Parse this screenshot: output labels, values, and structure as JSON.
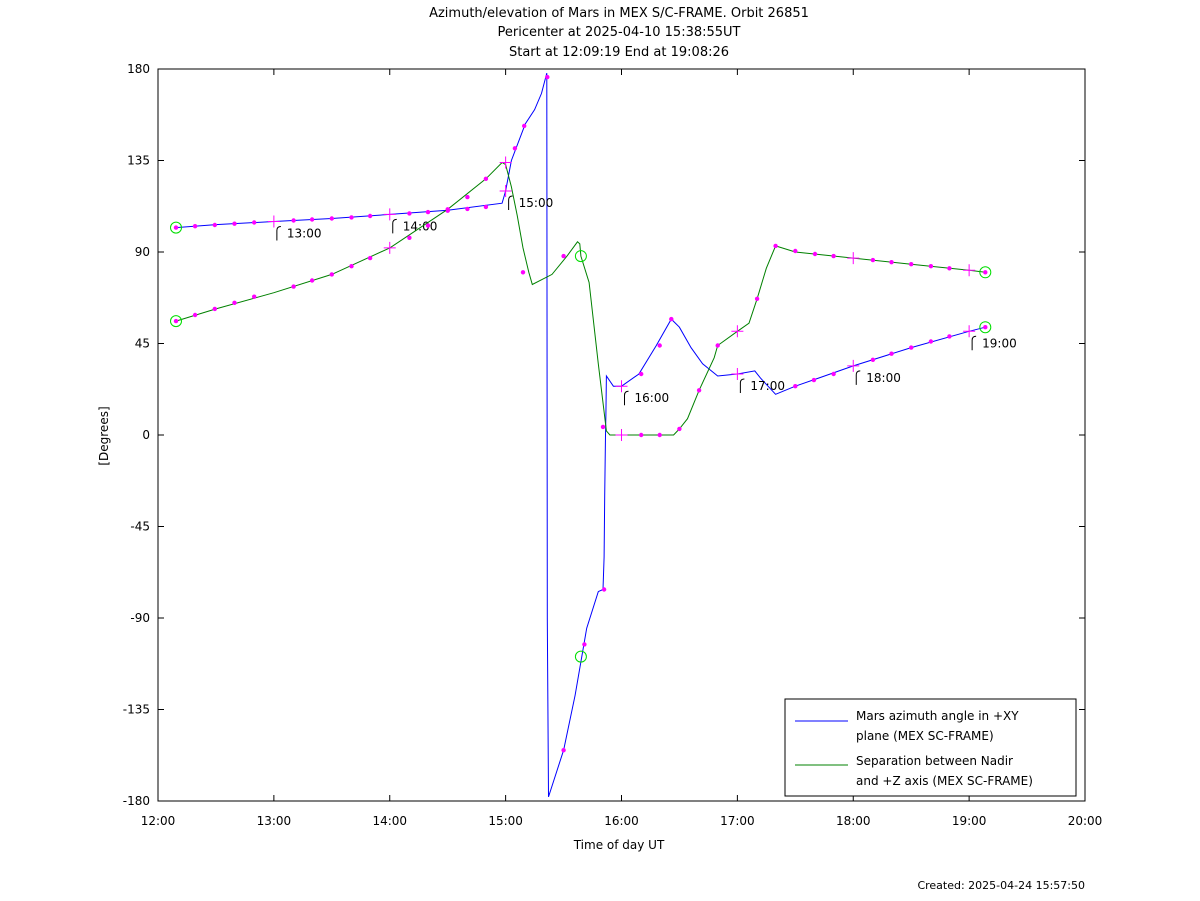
{
  "chart_data": {
    "type": "line",
    "title": [
      "Azimuth/elevation of Mars in MEX S/C-FRAME.  Orbit 26851",
      "Pericenter at 2025-04-10 15:38:55UT",
      "Start at 12:09:19 End at 19:08:26"
    ],
    "xlabel": "Time of day UT",
    "ylabel": "[Degrees]",
    "xlim": [
      12.0,
      20.0
    ],
    "ylim": [
      -180,
      180
    ],
    "x_ticks": [
      12,
      13,
      14,
      15,
      16,
      17,
      18,
      19,
      20
    ],
    "x_tick_labels": [
      "12:00",
      "13:00",
      "14:00",
      "15:00",
      "16:00",
      "17:00",
      "18:00",
      "19:00",
      "20:00"
    ],
    "y_ticks": [
      180,
      135,
      90,
      45,
      0,
      -45,
      -90,
      -135,
      -180
    ],
    "y_tick_labels": [
      "180",
      "135",
      "90",
      "45",
      "0",
      "-45",
      "-90",
      "-135",
      "-180"
    ],
    "grid": false,
    "legend_position": "bottom-right",
    "series": [
      {
        "name": "Mars azimuth angle in +XY plane (MEX SC-FRAME)",
        "legend_lines": [
          "Mars azimuth angle in +XY",
          "plane (MEX SC-FRAME)"
        ],
        "color": "#0000ff",
        "points": [
          [
            12.155,
            102
          ],
          [
            12.5,
            103.5
          ],
          [
            13.0,
            105
          ],
          [
            13.5,
            106.5
          ],
          [
            14.0,
            108.5
          ],
          [
            14.5,
            110.5
          ],
          [
            14.97,
            114
          ],
          [
            15.0,
            120
          ],
          [
            15.05,
            135
          ],
          [
            15.17,
            153
          ],
          [
            15.25,
            160
          ],
          [
            15.31,
            168
          ],
          [
            15.355,
            178
          ],
          [
            15.36,
            -90
          ],
          [
            15.37,
            -178
          ],
          [
            15.5,
            -155
          ],
          [
            15.6,
            -128
          ],
          [
            15.7,
            -95
          ],
          [
            15.8,
            -77
          ],
          [
            15.84,
            -76
          ],
          [
            15.85,
            -60
          ],
          [
            15.855,
            -30
          ],
          [
            15.862,
            0
          ],
          [
            15.865,
            10
          ],
          [
            15.87,
            29
          ],
          [
            15.93,
            24
          ],
          [
            16.0,
            24
          ],
          [
            16.15,
            30
          ],
          [
            16.3,
            44
          ],
          [
            16.43,
            57
          ],
          [
            16.5,
            53
          ],
          [
            16.6,
            43
          ],
          [
            16.7,
            35
          ],
          [
            16.83,
            29
          ],
          [
            17.0,
            30
          ],
          [
            17.15,
            31.5
          ],
          [
            17.2,
            28
          ],
          [
            17.33,
            20
          ],
          [
            17.5,
            24
          ],
          [
            17.7,
            28
          ],
          [
            18.0,
            34
          ],
          [
            18.5,
            43
          ],
          [
            19.0,
            51
          ],
          [
            19.14,
            53
          ]
        ],
        "markers": [
          [
            12.155,
            102
          ],
          [
            12.32,
            102.7
          ],
          [
            12.49,
            103.3
          ],
          [
            12.66,
            103.9
          ],
          [
            12.83,
            104.5
          ],
          [
            13.17,
            105.5
          ],
          [
            13.33,
            106
          ],
          [
            13.5,
            106.5
          ],
          [
            13.67,
            107
          ],
          [
            13.83,
            107.7
          ],
          [
            14.17,
            109
          ],
          [
            14.33,
            109.6
          ],
          [
            14.5,
            110.3
          ],
          [
            14.67,
            111.2
          ],
          [
            14.83,
            112.2
          ],
          [
            15.08,
            141
          ],
          [
            15.16,
            152
          ],
          [
            15.36,
            176
          ],
          [
            15.5,
            -155
          ],
          [
            15.68,
            -103
          ],
          [
            15.85,
            -76
          ],
          [
            16.17,
            30
          ],
          [
            16.33,
            44
          ],
          [
            16.43,
            57
          ],
          [
            17.5,
            24
          ],
          [
            17.66,
            27
          ],
          [
            17.83,
            30
          ],
          [
            18.17,
            37
          ],
          [
            18.33,
            40
          ],
          [
            18.5,
            43
          ],
          [
            18.67,
            46
          ],
          [
            18.83,
            48.5
          ],
          [
            19.14,
            53
          ]
        ],
        "time_marks": [
          [
            13.0,
            105,
            "13:00"
          ],
          [
            14.0,
            108.5,
            "14:00"
          ],
          [
            15.0,
            120,
            "15:00"
          ],
          [
            16.0,
            24,
            "16:00"
          ],
          [
            17.0,
            30,
            "17:00"
          ],
          [
            18.0,
            34,
            "18:00"
          ],
          [
            19.0,
            51,
            "19:00"
          ]
        ],
        "circles": [
          [
            12.155,
            102
          ],
          [
            15.65,
            -109
          ],
          [
            19.14,
            53
          ]
        ]
      },
      {
        "name": "Separation between Nadir and +Z axis (MEX SC-FRAME)",
        "legend_lines": [
          "Separation between Nadir",
          "and +Z axis (MEX SC-FRAME)"
        ],
        "color": "#008000",
        "points": [
          [
            12.155,
            56
          ],
          [
            12.5,
            62
          ],
          [
            13.0,
            70
          ],
          [
            13.5,
            79
          ],
          [
            14.0,
            92
          ],
          [
            14.5,
            111
          ],
          [
            14.83,
            126
          ],
          [
            14.97,
            134
          ],
          [
            15.0,
            133
          ],
          [
            15.05,
            122
          ],
          [
            15.1,
            108
          ],
          [
            15.15,
            92
          ],
          [
            15.2,
            80
          ],
          [
            15.23,
            74
          ],
          [
            15.4,
            79
          ],
          [
            15.53,
            88
          ],
          [
            15.62,
            95
          ],
          [
            15.64,
            94
          ],
          [
            15.65,
            88
          ],
          [
            15.72,
            75
          ],
          [
            15.8,
            35
          ],
          [
            15.87,
            2
          ],
          [
            15.9,
            0
          ],
          [
            16.0,
            0
          ],
          [
            16.45,
            0
          ],
          [
            16.5,
            3
          ],
          [
            16.57,
            8
          ],
          [
            16.67,
            22
          ],
          [
            16.8,
            38
          ],
          [
            16.83,
            44
          ],
          [
            17.0,
            51
          ],
          [
            17.1,
            55
          ],
          [
            17.17,
            67
          ],
          [
            17.25,
            82
          ],
          [
            17.33,
            93
          ],
          [
            17.5,
            90
          ],
          [
            18.0,
            87
          ],
          [
            18.5,
            84
          ],
          [
            19.0,
            81
          ],
          [
            19.14,
            80
          ]
        ],
        "markers": [
          [
            12.155,
            56
          ],
          [
            12.32,
            59
          ],
          [
            12.49,
            62
          ],
          [
            12.66,
            65
          ],
          [
            12.83,
            68
          ],
          [
            13.17,
            73
          ],
          [
            13.33,
            76
          ],
          [
            13.5,
            79
          ],
          [
            13.67,
            83
          ],
          [
            13.83,
            87
          ],
          [
            14.17,
            97
          ],
          [
            14.33,
            103
          ],
          [
            14.5,
            111
          ],
          [
            14.67,
            117
          ],
          [
            14.83,
            126
          ],
          [
            15.15,
            80
          ],
          [
            15.5,
            88
          ],
          [
            15.84,
            4
          ],
          [
            16.17,
            0
          ],
          [
            16.33,
            0
          ],
          [
            16.5,
            3
          ],
          [
            16.67,
            22
          ],
          [
            16.83,
            44
          ],
          [
            17.17,
            67
          ],
          [
            17.33,
            93
          ],
          [
            17.5,
            90.5
          ],
          [
            17.67,
            89
          ],
          [
            17.83,
            88
          ],
          [
            18.17,
            86
          ],
          [
            18.33,
            85
          ],
          [
            18.5,
            84
          ],
          [
            18.67,
            83
          ],
          [
            18.83,
            82
          ],
          [
            19.14,
            80
          ]
        ],
        "time_marks": [
          [
            14.0,
            92
          ],
          [
            15.0,
            134
          ],
          [
            16.0,
            0
          ],
          [
            17.0,
            51
          ],
          [
            18.0,
            87
          ],
          [
            19.0,
            81
          ]
        ],
        "circles": [
          [
            12.155,
            56
          ],
          [
            15.65,
            88
          ],
          [
            19.14,
            80
          ]
        ]
      }
    ]
  },
  "footer": {
    "created": "Created: 2025-04-24 15:57:50"
  },
  "colors": {
    "marker": "#ff00ff",
    "circle": "#00dd00",
    "axis": "#000000"
  }
}
